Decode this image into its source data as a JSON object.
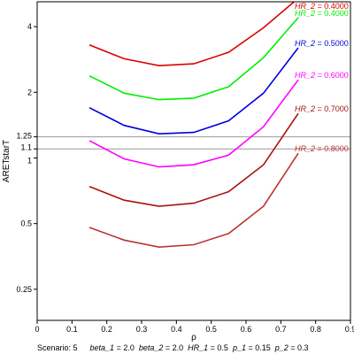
{
  "chart_data": {
    "type": "line",
    "xlabel": "ρ",
    "ylabel": "ARETstarT",
    "xlim": [
      0,
      0.9
    ],
    "ylim": [
      0.18,
      5.2
    ],
    "y_scale": "log",
    "x_ticks": [
      {
        "value": 0,
        "label": "0"
      },
      {
        "value": 0.1,
        "label": "0.1"
      },
      {
        "value": 0.2,
        "label": "0.2"
      },
      {
        "value": 0.3,
        "label": "0.3"
      },
      {
        "value": 0.4,
        "label": "0.4"
      },
      {
        "value": 0.5,
        "label": "0.5"
      },
      {
        "value": 0.6,
        "label": "0.6"
      },
      {
        "value": 0.7,
        "label": "0.7"
      },
      {
        "value": 0.8,
        "label": "0.8"
      },
      {
        "value": 0.9,
        "label": "0.9"
      }
    ],
    "y_ticks": [
      {
        "value": 0.25,
        "label": "0.25"
      },
      {
        "value": 0.5,
        "label": "0.5"
      },
      {
        "value": 1,
        "label": "1"
      },
      {
        "value": 1.1,
        "label": "1.1"
      },
      {
        "value": 1.25,
        "label": "1.25"
      },
      {
        "value": 2,
        "label": "2"
      },
      {
        "value": 4,
        "label": "4"
      }
    ],
    "reference_lines": [
      1.1,
      1.25
    ],
    "series": [
      {
        "name": "0.4000",
        "color": "#dd0000",
        "x": [
          0.15,
          0.25,
          0.35,
          0.45,
          0.55,
          0.65,
          0.75
        ],
        "y": [
          3.3,
          2.85,
          2.65,
          2.7,
          3.05,
          3.95,
          5.4
        ]
      },
      {
        "name": "0.4000",
        "color": "#00ee00",
        "x": [
          0.15,
          0.25,
          0.35,
          0.45,
          0.55,
          0.65,
          0.75
        ],
        "y": [
          2.38,
          1.98,
          1.85,
          1.88,
          2.12,
          2.88,
          4.4
        ]
      },
      {
        "name": "0.5000",
        "color": "#0000dd",
        "x": [
          0.15,
          0.25,
          0.35,
          0.45,
          0.55,
          0.65,
          0.75
        ],
        "y": [
          1.7,
          1.41,
          1.29,
          1.31,
          1.48,
          1.98,
          3.2
        ]
      },
      {
        "name": "0.6000",
        "color": "#ff00ff",
        "x": [
          0.15,
          0.25,
          0.35,
          0.45,
          0.55,
          0.65,
          0.75
        ],
        "y": [
          1.2,
          0.99,
          0.91,
          0.93,
          1.03,
          1.39,
          2.28
        ]
      },
      {
        "name": "0.7000",
        "color": "#aa1111",
        "x": [
          0.15,
          0.25,
          0.35,
          0.45,
          0.55,
          0.65,
          0.75
        ],
        "y": [
          0.74,
          0.64,
          0.6,
          0.62,
          0.7,
          0.93,
          1.6
        ]
      },
      {
        "name": "0.8000",
        "color": "#bb3333",
        "x": [
          0.15,
          0.25,
          0.35,
          0.45,
          0.55,
          0.65,
          0.75
        ],
        "y": [
          0.48,
          0.42,
          0.39,
          0.4,
          0.45,
          0.6,
          1.05
        ]
      }
    ],
    "series_label_prefix": "HR_2",
    "series_label_eq": " = ",
    "footer": {
      "scenario": "Scenario: 5",
      "params": [
        {
          "name": "beta_1",
          "value": " = 2.0"
        },
        {
          "name": "beta_2",
          "value": " = 2.0"
        },
        {
          "name": "HR_1",
          "value": " = 0.5"
        },
        {
          "name": "p_1",
          "value": " = 0.15"
        },
        {
          "name": "p_2",
          "value": " = 0.3"
        }
      ]
    }
  }
}
